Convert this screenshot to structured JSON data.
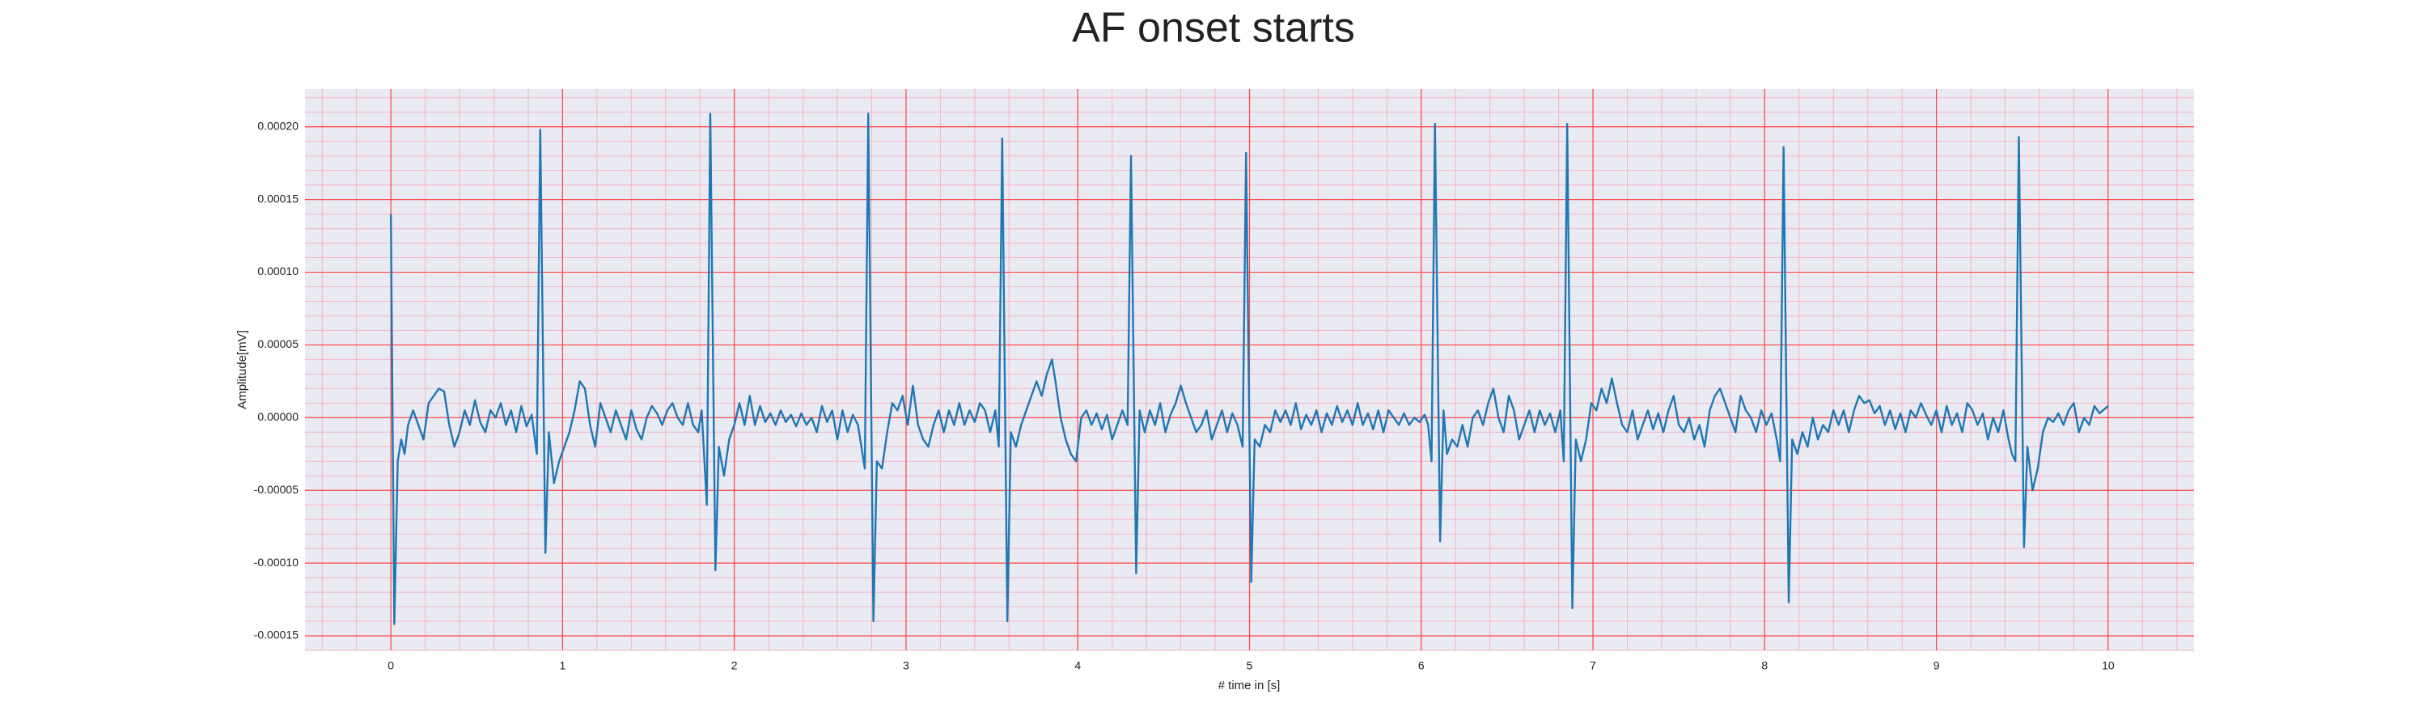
{
  "chart_data": {
    "type": "line",
    "title": "AF onset starts",
    "xlabel": "# time in [s]",
    "ylabel": "Amplitude[mV]",
    "xlim": [
      -0.5,
      10.5
    ],
    "ylim": [
      -0.00016,
      0.000226
    ],
    "xticks": [
      0,
      1,
      2,
      3,
      4,
      5,
      6,
      7,
      8,
      9,
      10
    ],
    "yticks": [
      {
        "value": -0.00015,
        "label": "-0.00015"
      },
      {
        "value": -0.0001,
        "label": "-0.00010"
      },
      {
        "value": -5e-05,
        "label": "-0.00005"
      },
      {
        "value": 0,
        "label": "0.00000"
      },
      {
        "value": 5e-05,
        "label": "0.00005"
      },
      {
        "value": 0.0001,
        "label": "0.00010"
      },
      {
        "value": 0.00015,
        "label": "0.00015"
      },
      {
        "value": 0.0002,
        "label": "0.00020"
      }
    ],
    "grid": true,
    "minor_grid": true,
    "grid_color": "#ff4444",
    "minor_grid_color": "#f4b6c8",
    "background": "#eaeaf2",
    "series": [
      {
        "color": "#1f77b4",
        "x": [
          0,
          0.02,
          0.04,
          0.06,
          0.08,
          0.1,
          0.13,
          0.16,
          0.19,
          0.22,
          0.25,
          0.28,
          0.31,
          0.34,
          0.37,
          0.4,
          0.43,
          0.46,
          0.49,
          0.52,
          0.55,
          0.58,
          0.61,
          0.64,
          0.67,
          0.7,
          0.73,
          0.76,
          0.79,
          0.82,
          0.85,
          0.87,
          0.9,
          0.92,
          0.95,
          0.98,
          1.01,
          1.04,
          1.07,
          1.1,
          1.13,
          1.16,
          1.19,
          1.22,
          1.25,
          1.28,
          1.31,
          1.34,
          1.37,
          1.4,
          1.43,
          1.46,
          1.49,
          1.52,
          1.55,
          1.58,
          1.61,
          1.64,
          1.67,
          1.7,
          1.73,
          1.76,
          1.79,
          1.81,
          1.84,
          1.86,
          1.89,
          1.91,
          1.94,
          1.97,
          2.0,
          2.03,
          2.06,
          2.09,
          2.12,
          2.15,
          2.18,
          2.21,
          2.24,
          2.27,
          2.3,
          2.33,
          2.36,
          2.39,
          2.42,
          2.45,
          2.48,
          2.51,
          2.54,
          2.57,
          2.6,
          2.63,
          2.66,
          2.69,
          2.72,
          2.76,
          2.78,
          2.81,
          2.83,
          2.86,
          2.89,
          2.92,
          2.95,
          2.98,
          3.01,
          3.04,
          3.07,
          3.1,
          3.13,
          3.16,
          3.19,
          3.22,
          3.25,
          3.28,
          3.31,
          3.34,
          3.37,
          3.4,
          3.43,
          3.46,
          3.49,
          3.52,
          3.54,
          3.56,
          3.59,
          3.61,
          3.64,
          3.67,
          3.7,
          3.73,
          3.76,
          3.79,
          3.82,
          3.85,
          3.87,
          3.9,
          3.93,
          3.96,
          3.99,
          4.02,
          4.05,
          4.08,
          4.11,
          4.14,
          4.17,
          4.2,
          4.23,
          4.26,
          4.29,
          4.31,
          4.34,
          4.36,
          4.39,
          4.42,
          4.45,
          4.48,
          4.51,
          4.54,
          4.57,
          4.6,
          4.63,
          4.66,
          4.69,
          4.72,
          4.75,
          4.78,
          4.81,
          4.84,
          4.87,
          4.9,
          4.93,
          4.96,
          4.98,
          5.01,
          5.03,
          5.06,
          5.09,
          5.12,
          5.15,
          5.18,
          5.21,
          5.24,
          5.27,
          5.3,
          5.33,
          5.36,
          5.39,
          5.42,
          5.45,
          5.48,
          5.51,
          5.54,
          5.57,
          5.6,
          5.63,
          5.66,
          5.69,
          5.72,
          5.75,
          5.78,
          5.81,
          5.84,
          5.87,
          5.9,
          5.93,
          5.96,
          5.99,
          6.02,
          6.04,
          6.06,
          6.08,
          6.11,
          6.13,
          6.15,
          6.18,
          6.21,
          6.24,
          6.27,
          6.3,
          6.33,
          6.36,
          6.39,
          6.42,
          6.45,
          6.48,
          6.51,
          6.54,
          6.57,
          6.6,
          6.63,
          6.66,
          6.69,
          6.72,
          6.75,
          6.78,
          6.81,
          6.83,
          6.85,
          6.88,
          6.9,
          6.93,
          6.96,
          6.99,
          7.02,
          7.05,
          7.08,
          7.11,
          7.14,
          7.17,
          7.2,
          7.23,
          7.26,
          7.29,
          7.32,
          7.35,
          7.38,
          7.41,
          7.44,
          7.47,
          7.5,
          7.53,
          7.56,
          7.59,
          7.62,
          7.65,
          7.68,
          7.71,
          7.74,
          7.77,
          7.8,
          7.83,
          7.86,
          7.89,
          7.92,
          7.95,
          7.98,
          8.01,
          8.04,
          8.07,
          8.09,
          8.11,
          8.14,
          8.16,
          8.19,
          8.22,
          8.25,
          8.28,
          8.31,
          8.34,
          8.37,
          8.4,
          8.43,
          8.46,
          8.49,
          8.52,
          8.55,
          8.58,
          8.61,
          8.64,
          8.67,
          8.7,
          8.73,
          8.76,
          8.79,
          8.82,
          8.85,
          8.88,
          8.91,
          8.94,
          8.97,
          9.0,
          9.03,
          9.06,
          9.09,
          9.12,
          9.15,
          9.18,
          9.21,
          9.24,
          9.27,
          9.3,
          9.33,
          9.36,
          9.39,
          9.42,
          9.44,
          9.46,
          9.48,
          9.51,
          9.53,
          9.56,
          9.59,
          9.62,
          9.65,
          9.68,
          9.71,
          9.74,
          9.77,
          9.8,
          9.83,
          9.86,
          9.89,
          9.92,
          9.95,
          9.97,
          10.0
        ],
        "values": [
          0.00014,
          -0.000142,
          -3e-05,
          -1.5e-05,
          -2.5e-05,
          -5e-06,
          5e-06,
          -5e-06,
          -1.5e-05,
          1e-05,
          1.5e-05,
          2e-05,
          1.8e-05,
          -5e-06,
          -2e-05,
          -1e-05,
          5e-06,
          -5e-06,
          1.2e-05,
          -3e-06,
          -1e-05,
          5e-06,
          0,
          1e-05,
          -5e-06,
          5e-06,
          -1e-05,
          8e-06,
          -6e-06,
          2e-06,
          -2.5e-05,
          0.000198,
          -9.3e-05,
          -1e-05,
          -4.5e-05,
          -3e-05,
          -2e-05,
          -1e-05,
          5e-06,
          2.5e-05,
          2e-05,
          -5e-06,
          -2e-05,
          1e-05,
          0,
          -1e-05,
          5e-06,
          -5e-06,
          -1.5e-05,
          5e-06,
          -8e-06,
          -1.5e-05,
          0,
          8e-06,
          3e-06,
          -5e-06,
          5e-06,
          1e-05,
          0,
          -5e-06,
          1e-05,
          -5e-06,
          -1e-05,
          5e-06,
          -6e-05,
          0.000209,
          -0.000105,
          -2e-05,
          -4e-05,
          -1.5e-05,
          -5e-06,
          1e-05,
          -5e-06,
          1.5e-05,
          -5e-06,
          8e-06,
          -3e-06,
          3e-06,
          -5e-06,
          5e-06,
          -3e-06,
          2e-06,
          -6e-06,
          3e-06,
          -5e-06,
          0,
          -1e-05,
          8e-06,
          -3e-06,
          5e-06,
          -1.5e-05,
          5e-06,
          -1e-05,
          2e-06,
          -5e-06,
          -3.5e-05,
          0.000209,
          -0.00014,
          -3e-05,
          -3.5e-05,
          -1e-05,
          1e-05,
          5e-06,
          1.5e-05,
          -5e-06,
          2.2e-05,
          -5e-06,
          -1.5e-05,
          -2e-05,
          -5e-06,
          5e-06,
          -1e-05,
          5e-06,
          -5e-06,
          1e-05,
          -5e-06,
          5e-06,
          -3e-06,
          1e-05,
          5e-06,
          -1e-05,
          5e-06,
          -2e-05,
          0.000192,
          -0.00014,
          -1e-05,
          -2e-05,
          -5e-06,
          5e-06,
          1.5e-05,
          2.5e-05,
          1.5e-05,
          3e-05,
          4e-05,
          2.5e-05,
          0,
          -1.5e-05,
          -2.5e-05,
          -3e-05,
          0,
          5e-06,
          -5e-06,
          3e-06,
          -8e-06,
          2e-06,
          -1.5e-05,
          -5e-06,
          5e-06,
          -5e-06,
          0.00018,
          -0.000107,
          5e-06,
          -1e-05,
          5e-06,
          -5e-06,
          1e-05,
          -1e-05,
          2e-06,
          1e-05,
          2.2e-05,
          1e-05,
          0,
          -1e-05,
          -5e-06,
          5e-06,
          -1.5e-05,
          -5e-06,
          5e-06,
          -1e-05,
          3e-06,
          -5e-06,
          -2e-05,
          0.000182,
          -0.000113,
          -1.5e-05,
          -2e-05,
          -5e-06,
          -1e-05,
          5e-06,
          -3e-06,
          5e-06,
          -5e-06,
          1e-05,
          -8e-06,
          2e-06,
          -5e-06,
          5e-06,
          -1e-05,
          3e-06,
          -5e-06,
          8e-06,
          -3e-06,
          5e-06,
          -5e-06,
          1e-05,
          -5e-06,
          3e-06,
          -8e-06,
          5e-06,
          -1e-05,
          5e-06,
          0,
          -5e-06,
          3e-06,
          -5e-06,
          0,
          -3e-06,
          2e-06,
          -5e-06,
          -3e-05,
          0.000202,
          -8.5e-05,
          5e-06,
          -2.5e-05,
          -1.5e-05,
          -2e-05,
          -5e-06,
          -2e-05,
          0,
          5e-06,
          -5e-06,
          1e-05,
          2e-05,
          0,
          -1e-05,
          1.5e-05,
          5e-06,
          -1.5e-05,
          -5e-06,
          5e-06,
          -1e-05,
          5e-06,
          -5e-06,
          3e-06,
          -1e-05,
          5e-06,
          -3e-05,
          0.000202,
          -0.000131,
          -1.5e-05,
          -3e-05,
          -1.5e-05,
          1e-05,
          5e-06,
          2e-05,
          1e-05,
          2.7e-05,
          1e-05,
          -5e-06,
          -1e-05,
          5e-06,
          -1.5e-05,
          -5e-06,
          5e-06,
          -8e-06,
          3e-06,
          -1e-05,
          5e-06,
          1.5e-05,
          -5e-06,
          -1e-05,
          0,
          -1.5e-05,
          -5e-06,
          -2e-05,
          5e-06,
          1.5e-05,
          2e-05,
          1e-05,
          0,
          -1e-05,
          1.5e-05,
          5e-06,
          0,
          -1e-05,
          5e-06,
          -5e-06,
          3e-06,
          -1.5e-05,
          -3e-05,
          0.000186,
          -0.000127,
          -1.5e-05,
          -2.5e-05,
          -1e-05,
          -2e-05,
          0,
          -1.5e-05,
          -5e-06,
          -1e-05,
          5e-06,
          -5e-06,
          5e-06,
          -1e-05,
          5e-06,
          1.5e-05,
          1e-05,
          1.2e-05,
          3e-06,
          8e-06,
          -5e-06,
          5e-06,
          -8e-06,
          3e-06,
          -1e-05,
          5e-06,
          0,
          1e-05,
          2e-06,
          -5e-06,
          5e-06,
          -1e-05,
          8e-06,
          -5e-06,
          3e-06,
          -1e-05,
          1e-05,
          5e-06,
          -5e-06,
          3e-06,
          -1.5e-05,
          0,
          -1e-05,
          5e-06,
          -1.5e-05,
          -2.5e-05,
          -3e-05,
          0.000193,
          -8.9e-05,
          -2e-05,
          -5e-05,
          -3.5e-05,
          -1e-05,
          0,
          -3e-06,
          3e-06,
          -5e-06,
          5e-06,
          1e-05,
          -1e-05,
          0,
          -5e-06,
          8e-06,
          3e-06,
          5e-06,
          8e-06
        ]
      }
    ]
  }
}
